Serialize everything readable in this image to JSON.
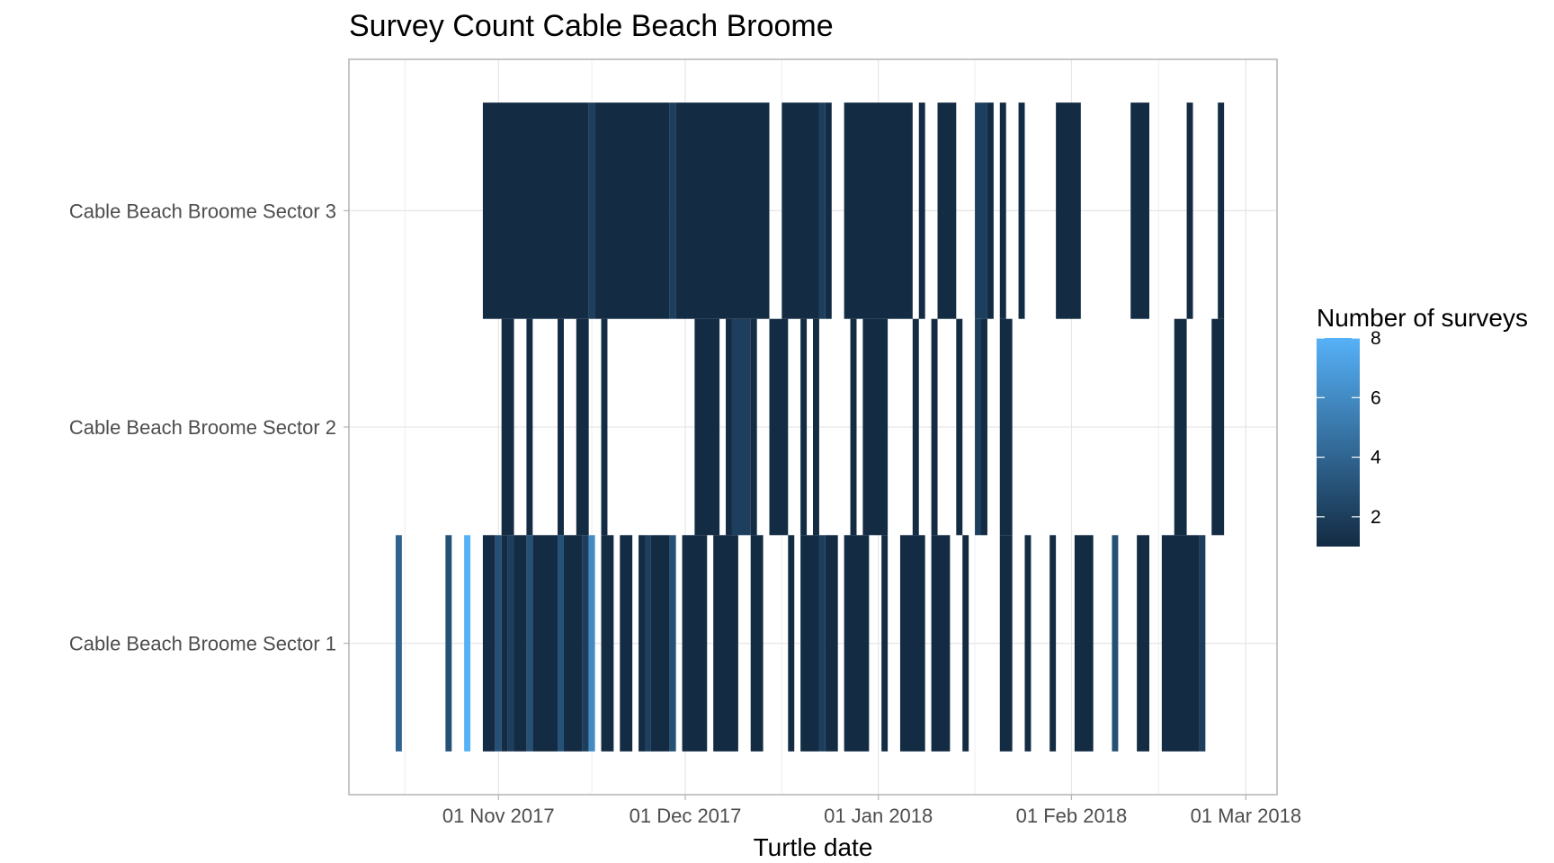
{
  "chart_data": {
    "type": "heatmap",
    "title": "Survey Count Cable Beach Broome",
    "xlabel": "Turtle date",
    "ylabel": "",
    "x_axis": {
      "type": "date",
      "ticks": [
        "2017-11-01",
        "2017-12-01",
        "2018-01-01",
        "2018-02-01",
        "2018-03-01"
      ],
      "tick_labels": [
        "01 Nov 2017",
        "01 Dec 2017",
        "01 Jan 2018",
        "01 Feb 2018",
        "01 Mar 2018"
      ],
      "range": [
        "2017-10-08",
        "2018-03-06"
      ]
    },
    "categories": [
      "Cable Beach Broome Sector 1",
      "Cable Beach Broome Sector 2",
      "Cable Beach Broome Sector 3"
    ],
    "grid": true,
    "legend": {
      "title": "Number of surveys",
      "position": "right",
      "range": [
        1,
        8
      ],
      "ticks": [
        2,
        4,
        6,
        8
      ],
      "color_low": "#132b43",
      "color_high": "#56b1f7"
    },
    "series": [
      {
        "category": "Cable Beach Broome Sector 1",
        "cells": [
          {
            "start": "2017-10-16",
            "end": "2017-10-16",
            "count": 4
          },
          {
            "start": "2017-10-24",
            "end": "2017-10-24",
            "count": 3
          },
          {
            "start": "2017-10-27",
            "end": "2017-10-27",
            "count": 8
          },
          {
            "start": "2017-10-30",
            "end": "2017-10-31",
            "count": 1
          },
          {
            "start": "2017-11-01",
            "end": "2017-11-01",
            "count": 3
          },
          {
            "start": "2017-11-02",
            "end": "2017-11-02",
            "count": 1
          },
          {
            "start": "2017-11-03",
            "end": "2017-11-03",
            "count": 2
          },
          {
            "start": "2017-11-04",
            "end": "2017-11-05",
            "count": 1
          },
          {
            "start": "2017-11-06",
            "end": "2017-11-06",
            "count": 3
          },
          {
            "start": "2017-11-07",
            "end": "2017-11-10",
            "count": 1
          },
          {
            "start": "2017-11-11",
            "end": "2017-11-11",
            "count": 3
          },
          {
            "start": "2017-11-12",
            "end": "2017-11-14",
            "count": 1
          },
          {
            "start": "2017-11-15",
            "end": "2017-11-15",
            "count": 2
          },
          {
            "start": "2017-11-16",
            "end": "2017-11-16",
            "count": 6
          },
          {
            "start": "2017-11-18",
            "end": "2017-11-19",
            "count": 1
          },
          {
            "start": "2017-11-21",
            "end": "2017-11-22",
            "count": 1
          },
          {
            "start": "2017-11-24",
            "end": "2017-11-24",
            "count": 1
          },
          {
            "start": "2017-11-25",
            "end": "2017-11-25",
            "count": 2
          },
          {
            "start": "2017-11-26",
            "end": "2017-11-28",
            "count": 1
          },
          {
            "start": "2017-11-29",
            "end": "2017-11-29",
            "count": 3
          },
          {
            "start": "2017-12-01",
            "end": "2017-12-04",
            "count": 1
          },
          {
            "start": "2017-12-06",
            "end": "2017-12-09",
            "count": 1
          },
          {
            "start": "2017-12-12",
            "end": "2017-12-13",
            "count": 1
          },
          {
            "start": "2017-12-18",
            "end": "2017-12-18",
            "count": 1
          },
          {
            "start": "2017-12-20",
            "end": "2017-12-22",
            "count": 1
          },
          {
            "start": "2017-12-23",
            "end": "2017-12-23",
            "count": 2
          },
          {
            "start": "2017-12-24",
            "end": "2017-12-25",
            "count": 1
          },
          {
            "start": "2017-12-27",
            "end": "2017-12-30",
            "count": 1
          },
          {
            "start": "2018-01-02",
            "end": "2018-01-02",
            "count": 1
          },
          {
            "start": "2018-01-05",
            "end": "2018-01-08",
            "count": 1
          },
          {
            "start": "2018-01-10",
            "end": "2018-01-12",
            "count": 1
          },
          {
            "start": "2018-01-15",
            "end": "2018-01-15",
            "count": 1
          },
          {
            "start": "2018-01-21",
            "end": "2018-01-22",
            "count": 1
          },
          {
            "start": "2018-01-25",
            "end": "2018-01-25",
            "count": 1
          },
          {
            "start": "2018-01-29",
            "end": "2018-01-29",
            "count": 1
          },
          {
            "start": "2018-02-02",
            "end": "2018-02-04",
            "count": 1
          },
          {
            "start": "2018-02-08",
            "end": "2018-02-08",
            "count": 3
          },
          {
            "start": "2018-02-12",
            "end": "2018-02-13",
            "count": 1
          },
          {
            "start": "2018-02-16",
            "end": "2018-02-21",
            "count": 1
          },
          {
            "start": "2018-02-22",
            "end": "2018-02-22",
            "count": 2
          }
        ]
      },
      {
        "category": "Cable Beach Broome Sector 2",
        "cells": [
          {
            "start": "2017-11-02",
            "end": "2017-11-03",
            "count": 1
          },
          {
            "start": "2017-11-06",
            "end": "2017-11-06",
            "count": 1
          },
          {
            "start": "2017-11-11",
            "end": "2017-11-11",
            "count": 1
          },
          {
            "start": "2017-11-14",
            "end": "2017-11-15",
            "count": 1
          },
          {
            "start": "2017-11-18",
            "end": "2017-11-18",
            "count": 1
          },
          {
            "start": "2017-12-03",
            "end": "2017-12-06",
            "count": 1
          },
          {
            "start": "2017-12-08",
            "end": "2017-12-08",
            "count": 1
          },
          {
            "start": "2017-12-09",
            "end": "2017-12-11",
            "count": 2
          },
          {
            "start": "2017-12-12",
            "end": "2017-12-12",
            "count": 1
          },
          {
            "start": "2017-12-15",
            "end": "2017-12-17",
            "count": 1
          },
          {
            "start": "2017-12-20",
            "end": "2017-12-20",
            "count": 1
          },
          {
            "start": "2017-12-22",
            "end": "2017-12-22",
            "count": 1
          },
          {
            "start": "2017-12-28",
            "end": "2017-12-28",
            "count": 1
          },
          {
            "start": "2017-12-30",
            "end": "2018-01-02",
            "count": 1
          },
          {
            "start": "2018-01-07",
            "end": "2018-01-07",
            "count": 1
          },
          {
            "start": "2018-01-10",
            "end": "2018-01-10",
            "count": 1
          },
          {
            "start": "2018-01-14",
            "end": "2018-01-14",
            "count": 1
          },
          {
            "start": "2018-01-17",
            "end": "2018-01-17",
            "count": 2
          },
          {
            "start": "2018-01-18",
            "end": "2018-01-18",
            "count": 1
          },
          {
            "start": "2018-01-21",
            "end": "2018-01-22",
            "count": 1
          },
          {
            "start": "2018-02-18",
            "end": "2018-02-19",
            "count": 1
          },
          {
            "start": "2018-02-24",
            "end": "2018-02-25",
            "count": 1
          }
        ]
      },
      {
        "category": "Cable Beach Broome Sector 3",
        "cells": [
          {
            "start": "2017-10-30",
            "end": "2017-11-15",
            "count": 1
          },
          {
            "start": "2017-11-16",
            "end": "2017-11-16",
            "count": 2
          },
          {
            "start": "2017-11-17",
            "end": "2017-11-28",
            "count": 1
          },
          {
            "start": "2017-11-29",
            "end": "2017-11-29",
            "count": 2
          },
          {
            "start": "2017-11-30",
            "end": "2017-12-14",
            "count": 1
          },
          {
            "start": "2017-12-17",
            "end": "2017-12-22",
            "count": 1
          },
          {
            "start": "2017-12-23",
            "end": "2017-12-23",
            "count": 2
          },
          {
            "start": "2017-12-24",
            "end": "2017-12-24",
            "count": 1
          },
          {
            "start": "2017-12-27",
            "end": "2018-01-06",
            "count": 1
          },
          {
            "start": "2018-01-08",
            "end": "2018-01-08",
            "count": 1
          },
          {
            "start": "2018-01-11",
            "end": "2018-01-13",
            "count": 1
          },
          {
            "start": "2018-01-17",
            "end": "2018-01-18",
            "count": 2
          },
          {
            "start": "2018-01-19",
            "end": "2018-01-19",
            "count": 1
          },
          {
            "start": "2018-01-21",
            "end": "2018-01-21",
            "count": 1
          },
          {
            "start": "2018-01-24",
            "end": "2018-01-24",
            "count": 1
          },
          {
            "start": "2018-01-30",
            "end": "2018-02-02",
            "count": 1
          },
          {
            "start": "2018-02-11",
            "end": "2018-02-13",
            "count": 1
          },
          {
            "start": "2018-02-20",
            "end": "2018-02-20",
            "count": 1
          },
          {
            "start": "2018-02-25",
            "end": "2018-02-25",
            "count": 1
          }
        ]
      }
    ]
  }
}
